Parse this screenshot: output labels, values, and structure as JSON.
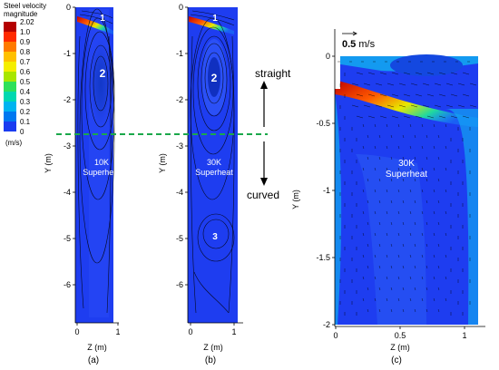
{
  "legend": {
    "title_line1": "Steel velocity",
    "title_line2": "magnitude",
    "unit": "(m/s)",
    "levels": [
      "2.02",
      "1.0",
      "0.9",
      "0.8",
      "0.7",
      "0.6",
      "0.5",
      "0.4",
      "0.3",
      "0.2",
      "0.1",
      "0"
    ],
    "colors": [
      "#b40000",
      "#ff2a00",
      "#ff7a00",
      "#ffc000",
      "#f5ee00",
      "#a8e600",
      "#2ee05a",
      "#00d8b0",
      "#00b4f0",
      "#0078f0",
      "#1a3cf0"
    ]
  },
  "panel_a": {
    "caption": "(a)",
    "superheat_line1": "10K",
    "superheat_line2": "Superheat",
    "ylabel": "Y (m)",
    "xlabel": "Z (m)",
    "yticks": [
      "0",
      "-1",
      "-2",
      "-3",
      "-4",
      "-5",
      "-6"
    ],
    "xticks": [
      "0",
      "1"
    ],
    "markers": [
      "1",
      "2"
    ]
  },
  "panel_b": {
    "caption": "(b)",
    "superheat_line1": "30K",
    "superheat_line2": "Superheat",
    "ylabel": "Y (m)",
    "xlabel": "Z (m)",
    "yticks": [
      "0",
      "-1",
      "-2",
      "-3",
      "-4",
      "-5",
      "-6"
    ],
    "xticks": [
      "0",
      "1"
    ],
    "markers": [
      "1",
      "2",
      "3"
    ]
  },
  "panel_c": {
    "caption": "(c)",
    "superheat_line1": "30K",
    "superheat_line2": "Superheat",
    "ylabel": "Y (m)",
    "xlabel": "Z (m)",
    "yticks": [
      "0",
      "-0.5",
      "-1",
      "-1.5",
      "-2"
    ],
    "xticks": [
      "0",
      "0.5",
      "1"
    ],
    "scale_value": "0.5",
    "scale_unit": " m/s"
  },
  "annotations": {
    "straight": "straight",
    "curved": "curved"
  }
}
